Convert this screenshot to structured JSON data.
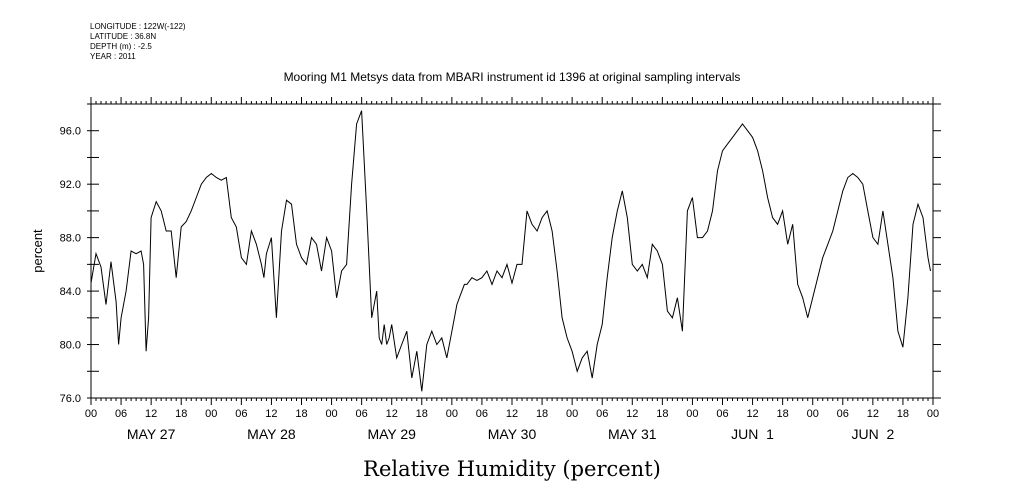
{
  "meta_lines": [
    "LONGITUDE : 122W(-122)",
    "LATITUDE : 36.8N",
    "DEPTH (m) : -2.5",
    "YEAR : 2011"
  ],
  "chart_data": {
    "type": "line",
    "title": "Mooring M1 Metsys data from MBARI instrument id 1396 at original sampling intervals",
    "xlabel": "Relative Humidity (percent)",
    "ylabel": "percent",
    "ylim": [
      76.0,
      98.0
    ],
    "xlim_hours": [
      0,
      168
    ],
    "yticks": [
      "76.0",
      "80.0",
      "84.0",
      "88.0",
      "92.0",
      "96.0"
    ],
    "xtick_labels": [
      "00",
      "06",
      "12",
      "18",
      "00",
      "06",
      "12",
      "18",
      "00",
      "06",
      "12",
      "18",
      "00",
      "06",
      "12",
      "18",
      "00",
      "06",
      "12",
      "18",
      "00",
      "06",
      "12",
      "18",
      "00",
      "06",
      "12",
      "18",
      "00"
    ],
    "day_labels": [
      "MAY 27",
      "MAY 28",
      "MAY 29",
      "MAY 30",
      "MAY 31",
      "JUN  1",
      "JUN  2"
    ],
    "grid": false,
    "series": [
      {
        "x": [
          0,
          1,
          2,
          3,
          4,
          5,
          5.5,
          6,
          7,
          8,
          9,
          10,
          10.5,
          11,
          11.5,
          12,
          13,
          14,
          15,
          16,
          17,
          18,
          19,
          20,
          21,
          22,
          23,
          24,
          25,
          26,
          27,
          28,
          29,
          30,
          31,
          32,
          33,
          34,
          34.5,
          35,
          36,
          37,
          38,
          39,
          40,
          41,
          42,
          43,
          44,
          45,
          46,
          47,
          48,
          49,
          50,
          51,
          52,
          53,
          54,
          55,
          56,
          57,
          57.5,
          58,
          58.5,
          59,
          59.5,
          60,
          61,
          62,
          63,
          64,
          65,
          66,
          67,
          68,
          69,
          70,
          71,
          72,
          73,
          74,
          74.5,
          75,
          76,
          77,
          78,
          79,
          80,
          81,
          82,
          83,
          84,
          85,
          86,
          87,
          88,
          89,
          90,
          91,
          92,
          93,
          94,
          95,
          96,
          97,
          98,
          99,
          100,
          101,
          102,
          103,
          104,
          105,
          106,
          107,
          108,
          109,
          110,
          111,
          112,
          113,
          114,
          115,
          116,
          117,
          118,
          119,
          120,
          121,
          122,
          123,
          124,
          125,
          126,
          127,
          128,
          129,
          130,
          131,
          132,
          133,
          134,
          135,
          136,
          137,
          138,
          139,
          140,
          141,
          142,
          143,
          144,
          145,
          146,
          147,
          148,
          149,
          150,
          151,
          152,
          153,
          154,
          155,
          156,
          157,
          158,
          159,
          160,
          161,
          162,
          163,
          164,
          165,
          166,
          167,
          167.5
        ],
        "y": [
          84.6,
          86.8,
          85.8,
          83.0,
          86.2,
          83.2,
          80.0,
          82.0,
          84.0,
          87.0,
          86.8,
          87.0,
          86.0,
          79.5,
          82.0,
          89.5,
          90.7,
          90.0,
          88.5,
          88.5,
          85.0,
          88.8,
          89.2,
          90.0,
          91.0,
          92.0,
          92.5,
          92.8,
          92.5,
          92.3,
          92.5,
          89.5,
          88.8,
          86.5,
          86.0,
          88.5,
          87.5,
          86.0,
          85.0,
          86.8,
          88.0,
          82.0,
          88.5,
          90.8,
          90.5,
          87.5,
          86.5,
          86.0,
          88.0,
          87.5,
          85.5,
          88.0,
          87.0,
          83.5,
          85.5,
          86.0,
          92.0,
          96.5,
          97.5,
          90.0,
          82.0,
          84.0,
          80.5,
          80.0,
          81.5,
          80.0,
          80.5,
          81.5,
          79.0,
          80.0,
          81.0,
          77.5,
          79.5,
          76.5,
          80.0,
          81.0,
          80.0,
          80.5,
          79.0,
          81.0,
          83.0,
          84.0,
          84.5,
          84.5,
          85.0,
          84.8,
          85.0,
          85.5,
          84.5,
          85.5,
          85.0,
          86.0,
          84.6,
          86.0,
          86.0,
          90.0,
          89.0,
          88.5,
          89.5,
          90.0,
          88.5,
          85.5,
          82.0,
          80.5,
          79.5,
          78.0,
          79.0,
          79.5,
          77.5,
          80.0,
          81.5,
          85.0,
          88.0,
          90.0,
          91.5,
          89.5,
          86.0,
          85.5,
          86.0,
          85.0,
          87.5,
          87.0,
          86.0,
          82.5,
          82.0,
          83.5,
          81.0,
          90.0,
          91.0,
          88.0,
          88.0,
          88.5,
          90.0,
          93.0,
          94.5,
          95.0,
          95.5,
          96.0,
          96.5,
          96.0,
          95.5,
          94.5,
          93.0,
          91.0,
          89.5,
          89.0,
          90.0,
          87.5,
          89.0,
          84.5,
          83.5,
          82.0,
          83.5,
          85.0,
          86.5,
          87.5,
          88.5,
          90.0,
          91.5,
          92.5,
          92.8,
          92.5,
          92.0,
          90.0,
          88.0,
          87.5,
          90.0,
          87.5,
          85.0,
          81.0,
          79.8,
          83.5,
          89.0,
          90.5,
          89.5,
          86.5,
          85.5
        ]
      }
    ]
  }
}
